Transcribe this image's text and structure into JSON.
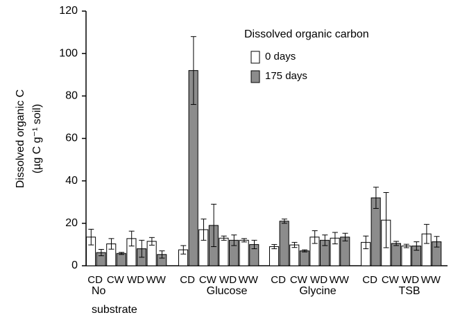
{
  "chart_data": {
    "type": "bar",
    "y_label": [
      "Dissolved organic C",
      "(µg C g⁻¹ soil)"
    ],
    "legend_title": "Dissolved organic carbon",
    "groups": [
      "No substrate",
      "Glucose",
      "Glycine",
      "TSB"
    ],
    "categories": [
      "CD",
      "CW",
      "WD",
      "WW",
      "CD",
      "CW",
      "WD",
      "WW",
      "CD",
      "CW",
      "WD",
      "WW",
      "CD",
      "CW",
      "WD",
      "WW"
    ],
    "series": [
      {
        "name": "0 days",
        "color": "#ffffff",
        "values": [
          13.5,
          10.3,
          12.8,
          11.5,
          7.5,
          17,
          13,
          12,
          9,
          9.8,
          13.5,
          13,
          11,
          21.5,
          9.3,
          15
        ],
        "errors": [
          3.7,
          2.5,
          3.5,
          1.8,
          2,
          5,
          1,
          0.8,
          1,
          1.2,
          3,
          2.7,
          3,
          13,
          0.8,
          4.5
        ]
      },
      {
        "name": "175 days",
        "color": "#8c8c8c",
        "values": [
          6.2,
          5.8,
          8,
          5.3,
          92,
          19,
          12,
          10,
          21,
          7,
          12,
          13.5,
          32,
          10.5,
          9.3,
          11.3
        ],
        "errors": [
          1.5,
          0.5,
          4,
          1.7,
          16,
          10,
          2.5,
          2,
          1,
          0.5,
          2.5,
          1.8,
          5,
          1,
          2,
          2.5
        ]
      }
    ],
    "ylim": [
      0,
      120
    ],
    "yticks": [
      0,
      20,
      40,
      60,
      80,
      100,
      120
    ],
    "grid": false
  }
}
